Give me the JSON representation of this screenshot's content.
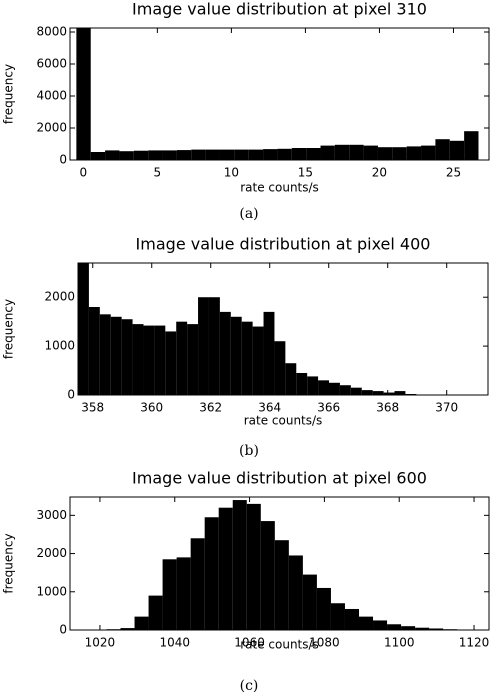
{
  "chart_data": [
    {
      "type": "histogram",
      "title": "Image value distribution at pixel 310",
      "xlabel": "rate counts/s",
      "ylabel": "frequency",
      "caption": "(a)",
      "color": "#000000",
      "bins": [
        -0.47,
        0.5,
        1.47,
        2.44,
        3.41,
        4.38,
        5.35,
        6.32,
        7.29,
        8.26,
        9.23,
        10.2,
        11.17,
        12.14,
        13.11,
        14.08,
        15.05,
        16.02,
        16.99,
        17.96,
        18.93,
        19.9,
        20.87,
        21.84,
        22.81,
        23.78,
        24.75,
        25.72,
        26.69
      ],
      "counts": [
        9000,
        500,
        600,
        550,
        580,
        600,
        600,
        620,
        650,
        650,
        650,
        650,
        650,
        680,
        700,
        750,
        750,
        900,
        950,
        950,
        900,
        800,
        800,
        850,
        900,
        1300,
        1200,
        1800
      ],
      "xlim": [
        -0.9,
        27.4
      ],
      "ylim": [
        0,
        8250
      ],
      "xticks": [
        0,
        5,
        10,
        15,
        20,
        25
      ],
      "yticks": [
        0,
        2000,
        4000,
        6000,
        8000
      ]
    },
    {
      "type": "histogram",
      "title": "Image value distribution at pixel 400",
      "xlabel": "rate counts/s",
      "ylabel": "frequency",
      "caption": "(b)",
      "color": "#000000",
      "bins": [
        357.5,
        357.87,
        358.24,
        358.61,
        358.98,
        359.35,
        359.72,
        360.09,
        360.46,
        360.83,
        361.2,
        361.57,
        361.94,
        362.31,
        362.68,
        363.05,
        363.42,
        363.79,
        364.16,
        364.53,
        364.9,
        365.27,
        365.64,
        366.01,
        366.38,
        366.75,
        367.12,
        367.49,
        367.86,
        368.23,
        368.6,
        368.97,
        369.34,
        369.71,
        370.08
      ],
      "counts": [
        2700,
        1800,
        1650,
        1600,
        1550,
        1450,
        1420,
        1420,
        1300,
        1500,
        1450,
        2000,
        2000,
        1700,
        1600,
        1500,
        1400,
        1700,
        1100,
        650,
        450,
        380,
        300,
        250,
        200,
        150,
        100,
        80,
        50,
        80,
        20,
        10,
        5,
        3
      ],
      "xlim": [
        357.5,
        371.4
      ],
      "ylim": [
        0,
        2700
      ],
      "xticks": [
        358,
        360,
        362,
        364,
        366,
        368,
        370
      ],
      "yticks": [
        0,
        1000,
        2000
      ]
    },
    {
      "type": "histogram",
      "title": "Image value distribution at pixel 600",
      "xlabel": "rate counts/s",
      "ylabel": "frequency",
      "caption": "(c)",
      "color": "#000000",
      "bins": [
        1018,
        1021.75,
        1025.5,
        1029.25,
        1033,
        1036.75,
        1040.5,
        1044.25,
        1048,
        1051.75,
        1055.5,
        1059.25,
        1063,
        1066.75,
        1070.5,
        1074.25,
        1078,
        1081.75,
        1085.5,
        1089.25,
        1093,
        1096.75,
        1100.5,
        1104.25,
        1108,
        1111.75,
        1115.5,
        1119.25,
        1123
      ],
      "counts": [
        5,
        20,
        50,
        350,
        900,
        1850,
        1900,
        2400,
        2950,
        3200,
        3400,
        3300,
        2850,
        2350,
        1950,
        1450,
        1100,
        700,
        550,
        350,
        250,
        150,
        100,
        60,
        40,
        20,
        10,
        5
      ],
      "xlim": [
        1012,
        1124
      ],
      "ylim": [
        0,
        3480
      ],
      "xticks": [
        1020,
        1040,
        1060,
        1080,
        1100,
        1120
      ],
      "yticks": [
        0,
        1000,
        2000,
        3000
      ]
    }
  ]
}
